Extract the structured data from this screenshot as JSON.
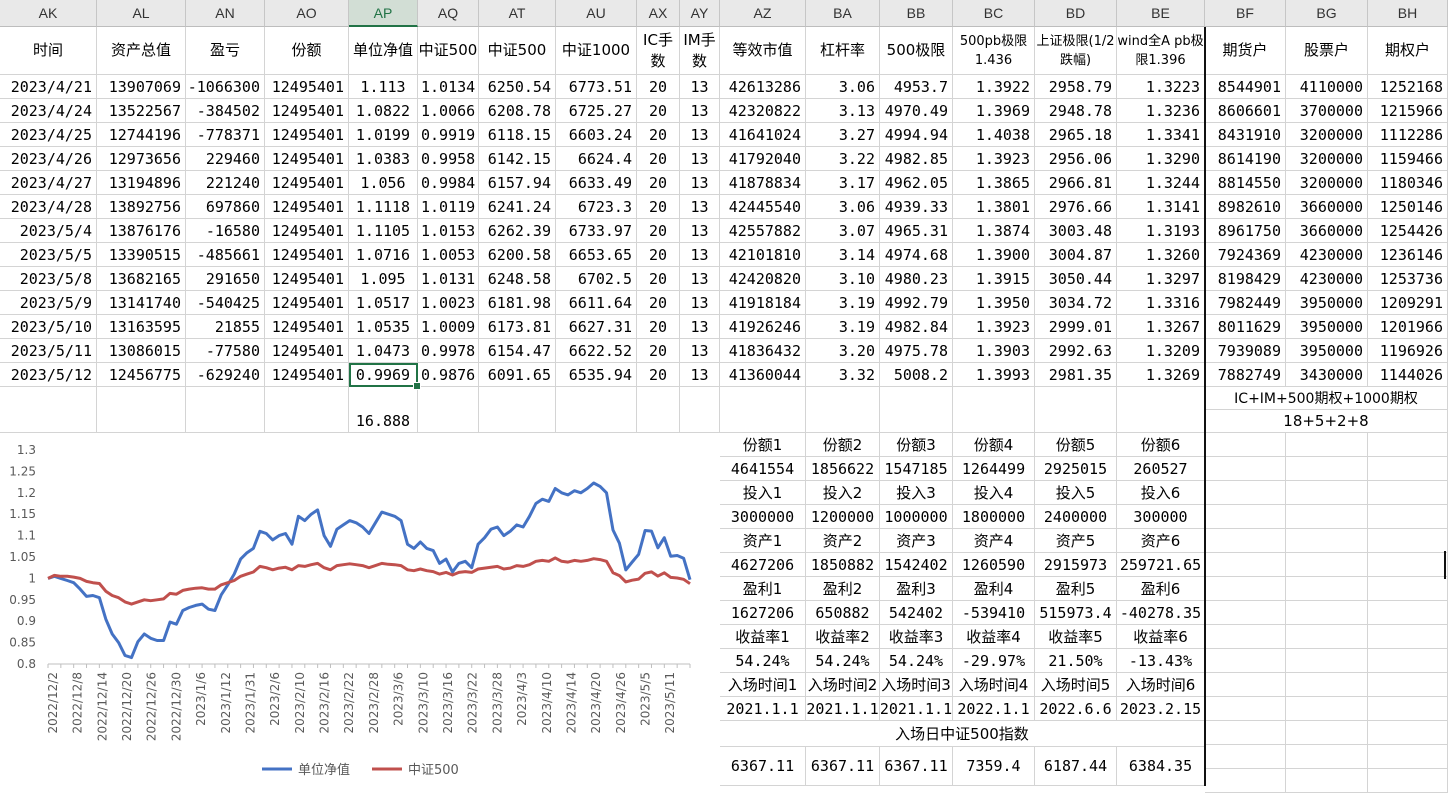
{
  "columns": [
    {
      "letter": "AK",
      "header": "时间"
    },
    {
      "letter": "AL",
      "header": "资产总值"
    },
    {
      "letter": "AN",
      "header": "盈亏"
    },
    {
      "letter": "AO",
      "header": "份额"
    },
    {
      "letter": "AP",
      "header": "单位净值"
    },
    {
      "letter": "AQ",
      "header": "中证500"
    },
    {
      "letter": "AT",
      "header": "中证500"
    },
    {
      "letter": "AU",
      "header": "中证1000"
    },
    {
      "letter": "AX",
      "header": "IC手数"
    },
    {
      "letter": "AY",
      "header": "IM手数"
    },
    {
      "letter": "AZ",
      "header": "等效市值"
    },
    {
      "letter": "BA",
      "header": "杠杆率"
    },
    {
      "letter": "BB",
      "header": "500极限"
    },
    {
      "letter": "BC",
      "header": "500pb极限1.436"
    },
    {
      "letter": "BD",
      "header": "上证极限(1/2跌幅)"
    },
    {
      "letter": "BE",
      "header": "wind全A pb极限1.396"
    },
    {
      "letter": "BF",
      "header": "期货户"
    },
    {
      "letter": "BG",
      "header": "股票户"
    },
    {
      "letter": "BH",
      "header": "期权户"
    }
  ],
  "rows": [
    [
      "2023/4/21",
      "13907069",
      "-1066300",
      "12495401",
      "1.113",
      "1.0134",
      "6250.54",
      "6773.51",
      "20",
      "13",
      "42613286",
      "3.06",
      "4953.7",
      "1.3922",
      "2958.79",
      "1.3223",
      "8544901",
      "4110000",
      "1252168"
    ],
    [
      "2023/4/24",
      "13522567",
      "-384502",
      "12495401",
      "1.0822",
      "1.0066",
      "6208.78",
      "6725.27",
      "20",
      "13",
      "42320822",
      "3.13",
      "4970.49",
      "1.3969",
      "2948.78",
      "1.3236",
      "8606601",
      "3700000",
      "1215966"
    ],
    [
      "2023/4/25",
      "12744196",
      "-778371",
      "12495401",
      "1.0199",
      "0.9919",
      "6118.15",
      "6603.24",
      "20",
      "13",
      "41641024",
      "3.27",
      "4994.94",
      "1.4038",
      "2965.18",
      "1.3341",
      "8431910",
      "3200000",
      "1112286"
    ],
    [
      "2023/4/26",
      "12973656",
      "229460",
      "12495401",
      "1.0383",
      "0.9958",
      "6142.15",
      "6624.4",
      "20",
      "13",
      "41792040",
      "3.22",
      "4982.85",
      "1.3923",
      "2956.06",
      "1.3290",
      "8614190",
      "3200000",
      "1159466"
    ],
    [
      "2023/4/27",
      "13194896",
      "221240",
      "12495401",
      "1.056",
      "0.9984",
      "6157.94",
      "6633.49",
      "20",
      "13",
      "41878834",
      "3.17",
      "4962.05",
      "1.3865",
      "2966.81",
      "1.3244",
      "8814550",
      "3200000",
      "1180346"
    ],
    [
      "2023/4/28",
      "13892756",
      "697860",
      "12495401",
      "1.1118",
      "1.0119",
      "6241.24",
      "6723.3",
      "20",
      "13",
      "42445540",
      "3.06",
      "4939.33",
      "1.3801",
      "2976.66",
      "1.3141",
      "8982610",
      "3660000",
      "1250146"
    ],
    [
      "2023/5/4",
      "13876176",
      "-16580",
      "12495401",
      "1.1105",
      "1.0153",
      "6262.39",
      "6733.97",
      "20",
      "13",
      "42557882",
      "3.07",
      "4965.31",
      "1.3874",
      "3003.48",
      "1.3193",
      "8961750",
      "3660000",
      "1254426"
    ],
    [
      "2023/5/5",
      "13390515",
      "-485661",
      "12495401",
      "1.0716",
      "1.0053",
      "6200.58",
      "6653.65",
      "20",
      "13",
      "42101810",
      "3.14",
      "4974.68",
      "1.3900",
      "3004.87",
      "1.3260",
      "7924369",
      "4230000",
      "1236146"
    ],
    [
      "2023/5/8",
      "13682165",
      "291650",
      "12495401",
      "1.095",
      "1.0131",
      "6248.58",
      "6702.5",
      "20",
      "13",
      "42420820",
      "3.10",
      "4980.23",
      "1.3915",
      "3050.44",
      "1.3297",
      "8198429",
      "4230000",
      "1253736"
    ],
    [
      "2023/5/9",
      "13141740",
      "-540425",
      "12495401",
      "1.0517",
      "1.0023",
      "6181.98",
      "6611.64",
      "20",
      "13",
      "41918184",
      "3.19",
      "4992.79",
      "1.3950",
      "3034.72",
      "1.3316",
      "7982449",
      "3950000",
      "1209291"
    ],
    [
      "2023/5/10",
      "13163595",
      "21855",
      "12495401",
      "1.0535",
      "1.0009",
      "6173.81",
      "6627.31",
      "20",
      "13",
      "41926246",
      "3.19",
      "4982.84",
      "1.3923",
      "2999.01",
      "1.3267",
      "8011629",
      "3950000",
      "1201966"
    ],
    [
      "2023/5/11",
      "13086015",
      "-77580",
      "12495401",
      "1.0473",
      "0.9978",
      "6154.47",
      "6622.52",
      "20",
      "13",
      "41836432",
      "3.20",
      "4975.78",
      "1.3903",
      "2992.63",
      "1.3209",
      "7939089",
      "3950000",
      "1196926"
    ],
    [
      "2023/5/12",
      "12456775",
      "-629240",
      "12495401",
      "0.9969",
      "0.9876",
      "6091.65",
      "6535.94",
      "20",
      "13",
      "41360044",
      "3.32",
      "5008.2",
      "1.3993",
      "2981.35",
      "1.3269",
      "7882749",
      "3430000",
      "1144026"
    ]
  ],
  "summary": {
    "ap_value": "16.888",
    "bf_note1": "IC+IM+500期权+1000期权",
    "bf_note2": "18+5+2+8"
  },
  "side_table": [
    [
      "份额1",
      "份额2",
      "份额3",
      "份额4",
      "份额5",
      "份额6"
    ],
    [
      "4641554",
      "1856622",
      "1547185",
      "1264499",
      "2925015",
      "260527"
    ],
    [
      "投入1",
      "投入2",
      "投入3",
      "投入4",
      "投入5",
      "投入6"
    ],
    [
      "3000000",
      "1200000",
      "1000000",
      "1800000",
      "2400000",
      "300000"
    ],
    [
      "资产1",
      "资产2",
      "资产3",
      "资产4",
      "资产5",
      "资产6"
    ],
    [
      "4627206",
      "1850882",
      "1542402",
      "1260590",
      "2915973",
      "259721.65"
    ],
    [
      "盈利1",
      "盈利2",
      "盈利3",
      "盈利4",
      "盈利5",
      "盈利6"
    ],
    [
      "1627206",
      "650882",
      "542402",
      "-539410",
      "515973.4",
      "-40278.35"
    ],
    [
      "收益率1",
      "收益率2",
      "收益率3",
      "收益率4",
      "收益率5",
      "收益率6"
    ],
    [
      "54.24%",
      "54.24%",
      "54.24%",
      "-29.97%",
      "21.50%",
      "-13.43%"
    ],
    [
      "入场时间1",
      "入场时间2",
      "入场时间3",
      "入场时间4",
      "入场时间5",
      "入场时间6"
    ],
    [
      "2021.1.1",
      "2021.1.1",
      "2021.1.1",
      "2022.1.1",
      "2022.6.6",
      "2023.2.15"
    ]
  ],
  "side_footer": {
    "label": "入场日中证500指数",
    "values": [
      "6367.11",
      "6367.11",
      "6367.11",
      "7359.4",
      "6187.44",
      "6384.35"
    ]
  },
  "colors": {
    "nav_series": "#4472c4",
    "index_series": "#c0504d",
    "selection": "#217346",
    "header_bg": "#e9e9e9"
  },
  "chart_data": {
    "type": "line",
    "title": "",
    "xlabel": "",
    "ylabel": "",
    "ylim": [
      0.8,
      1.3
    ],
    "yticks": [
      0.8,
      0.85,
      0.9,
      0.95,
      1,
      1.05,
      1.1,
      1.15,
      1.2,
      1.25,
      1.3
    ],
    "x_tick_labels": [
      "2022/12/2",
      "2022/12/8",
      "2022/12/14",
      "2022/12/20",
      "2022/12/26",
      "2022/12/30",
      "2023/1/6",
      "2023/1/12",
      "2023/1/31",
      "2023/2/6",
      "2023/2/10",
      "2023/2/16",
      "2023/2/22",
      "2023/2/28",
      "2023/3/6",
      "2023/3/10",
      "2023/3/16",
      "2023/3/22",
      "2023/3/28",
      "2023/4/3",
      "2023/4/10",
      "2023/4/14",
      "2023/4/20",
      "2023/4/26",
      "2023/5/5",
      "2023/5/11"
    ],
    "grid": false,
    "legend_placement": "bottom",
    "series": [
      {
        "name": "单位净值",
        "values": [
          1.0,
          1.005,
          1.0,
          0.995,
          0.99,
          0.975,
          0.958,
          0.96,
          0.955,
          0.905,
          0.87,
          0.85,
          0.82,
          0.815,
          0.852,
          0.87,
          0.86,
          0.855,
          0.855,
          0.898,
          0.893,
          0.925,
          0.932,
          0.937,
          0.94,
          0.928,
          0.925,
          0.962,
          0.985,
          1.01,
          1.045,
          1.06,
          1.07,
          1.11,
          1.105,
          1.09,
          1.1,
          1.105,
          1.08,
          1.145,
          1.135,
          1.15,
          1.16,
          1.1,
          1.075,
          1.115,
          1.125,
          1.135,
          1.13,
          1.12,
          1.105,
          1.13,
          1.155,
          1.15,
          1.145,
          1.135,
          1.08,
          1.07,
          1.085,
          1.07,
          1.065,
          1.035,
          1.045,
          1.015,
          1.035,
          1.04,
          1.025,
          1.08,
          1.095,
          1.115,
          1.12,
          1.1,
          1.11,
          1.125,
          1.12,
          1.145,
          1.175,
          1.185,
          1.18,
          1.21,
          1.2,
          1.195,
          1.205,
          1.2,
          1.21,
          1.223,
          1.215,
          1.2,
          1.113,
          1.0822,
          1.0199,
          1.0383,
          1.056,
          1.1118,
          1.1105,
          1.0716,
          1.095,
          1.0517,
          1.0535,
          1.0473,
          0.9969
        ]
      },
      {
        "name": "中证500",
        "values": [
          1.0,
          1.007,
          1.005,
          1.005,
          1.003,
          1.0,
          0.993,
          0.99,
          0.988,
          0.97,
          0.96,
          0.955,
          0.945,
          0.94,
          0.945,
          0.95,
          0.948,
          0.95,
          0.952,
          0.965,
          0.963,
          0.972,
          0.975,
          0.977,
          0.978,
          0.975,
          0.975,
          0.985,
          0.99,
          0.995,
          1.005,
          1.01,
          1.015,
          1.028,
          1.025,
          1.02,
          1.024,
          1.026,
          1.02,
          1.03,
          1.028,
          1.032,
          1.035,
          1.025,
          1.02,
          1.03,
          1.032,
          1.034,
          1.032,
          1.03,
          1.025,
          1.03,
          1.035,
          1.033,
          1.032,
          1.03,
          1.02,
          1.018,
          1.022,
          1.018,
          1.016,
          1.01,
          1.014,
          1.008,
          1.014,
          1.016,
          1.014,
          1.022,
          1.024,
          1.026,
          1.028,
          1.022,
          1.024,
          1.03,
          1.028,
          1.032,
          1.04,
          1.042,
          1.04,
          1.048,
          1.04,
          1.038,
          1.042,
          1.04,
          1.042,
          1.046,
          1.044,
          1.04,
          1.0134,
          1.0066,
          0.9919,
          0.9958,
          0.9984,
          1.0119,
          1.0153,
          1.0053,
          1.0131,
          1.0023,
          1.0009,
          0.9978,
          0.9876
        ]
      }
    ]
  }
}
